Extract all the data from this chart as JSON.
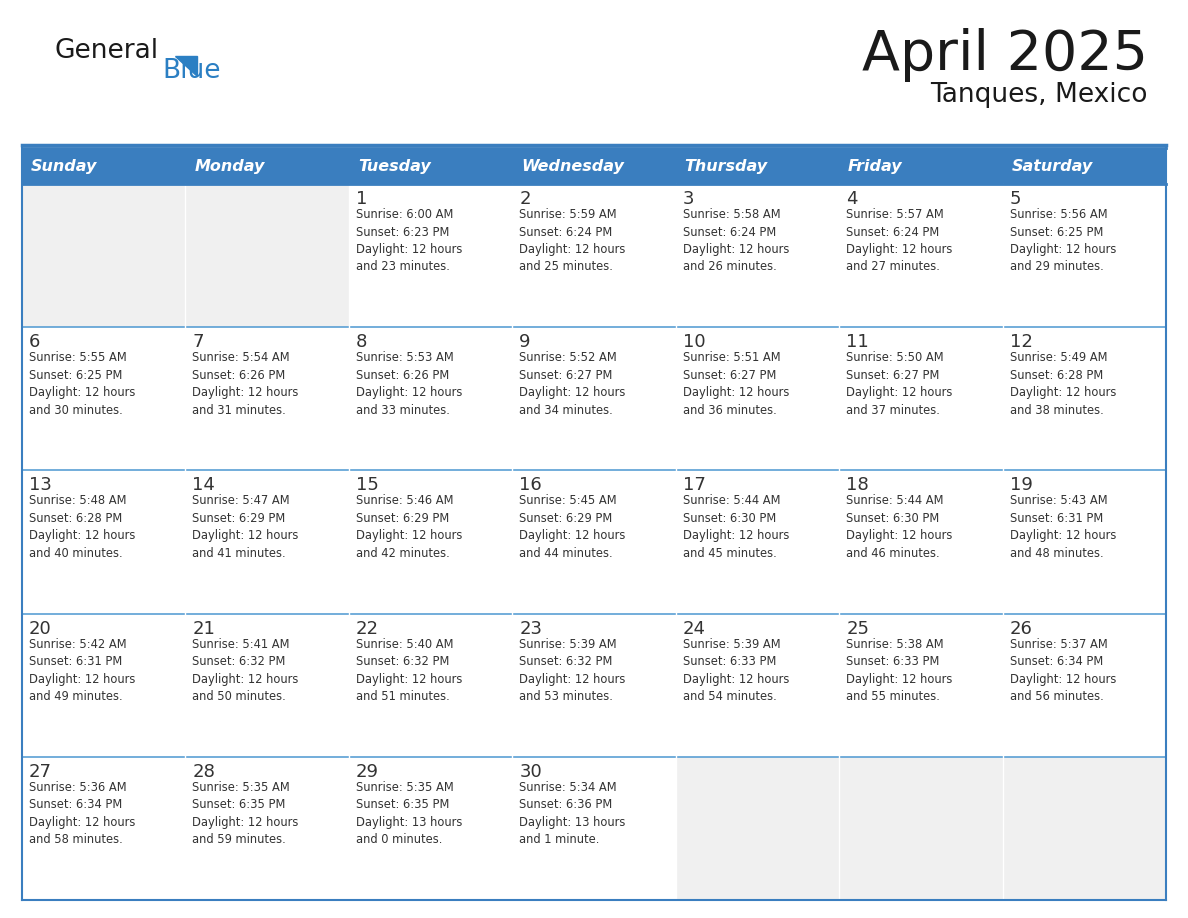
{
  "title": "April 2025",
  "subtitle": "Tanques, Mexico",
  "days_of_week": [
    "Sunday",
    "Monday",
    "Tuesday",
    "Wednesday",
    "Thursday",
    "Friday",
    "Saturday"
  ],
  "header_bg_color": "#3a7ebf",
  "header_text_color": "#ffffff",
  "cell_bg_white": "#ffffff",
  "cell_bg_gray": "#f0f0f0",
  "border_color": "#3a7ebf",
  "row_line_color": "#5a9fd4",
  "text_color": "#333333",
  "title_color": "#1a1a1a",
  "logo_general_color": "#1a1a1a",
  "logo_blue_color": "#2b7fc3",
  "calendar_data": [
    [
      {
        "day": null,
        "sunrise": null,
        "sunset": null,
        "daylight": null
      },
      {
        "day": null,
        "sunrise": null,
        "sunset": null,
        "daylight": null
      },
      {
        "day": 1,
        "sunrise": "6:00 AM",
        "sunset": "6:23 PM",
        "daylight": "12 hours\nand 23 minutes."
      },
      {
        "day": 2,
        "sunrise": "5:59 AM",
        "sunset": "6:24 PM",
        "daylight": "12 hours\nand 25 minutes."
      },
      {
        "day": 3,
        "sunrise": "5:58 AM",
        "sunset": "6:24 PM",
        "daylight": "12 hours\nand 26 minutes."
      },
      {
        "day": 4,
        "sunrise": "5:57 AM",
        "sunset": "6:24 PM",
        "daylight": "12 hours\nand 27 minutes."
      },
      {
        "day": 5,
        "sunrise": "5:56 AM",
        "sunset": "6:25 PM",
        "daylight": "12 hours\nand 29 minutes."
      }
    ],
    [
      {
        "day": 6,
        "sunrise": "5:55 AM",
        "sunset": "6:25 PM",
        "daylight": "12 hours\nand 30 minutes."
      },
      {
        "day": 7,
        "sunrise": "5:54 AM",
        "sunset": "6:26 PM",
        "daylight": "12 hours\nand 31 minutes."
      },
      {
        "day": 8,
        "sunrise": "5:53 AM",
        "sunset": "6:26 PM",
        "daylight": "12 hours\nand 33 minutes."
      },
      {
        "day": 9,
        "sunrise": "5:52 AM",
        "sunset": "6:27 PM",
        "daylight": "12 hours\nand 34 minutes."
      },
      {
        "day": 10,
        "sunrise": "5:51 AM",
        "sunset": "6:27 PM",
        "daylight": "12 hours\nand 36 minutes."
      },
      {
        "day": 11,
        "sunrise": "5:50 AM",
        "sunset": "6:27 PM",
        "daylight": "12 hours\nand 37 minutes."
      },
      {
        "day": 12,
        "sunrise": "5:49 AM",
        "sunset": "6:28 PM",
        "daylight": "12 hours\nand 38 minutes."
      }
    ],
    [
      {
        "day": 13,
        "sunrise": "5:48 AM",
        "sunset": "6:28 PM",
        "daylight": "12 hours\nand 40 minutes."
      },
      {
        "day": 14,
        "sunrise": "5:47 AM",
        "sunset": "6:29 PM",
        "daylight": "12 hours\nand 41 minutes."
      },
      {
        "day": 15,
        "sunrise": "5:46 AM",
        "sunset": "6:29 PM",
        "daylight": "12 hours\nand 42 minutes."
      },
      {
        "day": 16,
        "sunrise": "5:45 AM",
        "sunset": "6:29 PM",
        "daylight": "12 hours\nand 44 minutes."
      },
      {
        "day": 17,
        "sunrise": "5:44 AM",
        "sunset": "6:30 PM",
        "daylight": "12 hours\nand 45 minutes."
      },
      {
        "day": 18,
        "sunrise": "5:44 AM",
        "sunset": "6:30 PM",
        "daylight": "12 hours\nand 46 minutes."
      },
      {
        "day": 19,
        "sunrise": "5:43 AM",
        "sunset": "6:31 PM",
        "daylight": "12 hours\nand 48 minutes."
      }
    ],
    [
      {
        "day": 20,
        "sunrise": "5:42 AM",
        "sunset": "6:31 PM",
        "daylight": "12 hours\nand 49 minutes."
      },
      {
        "day": 21,
        "sunrise": "5:41 AM",
        "sunset": "6:32 PM",
        "daylight": "12 hours\nand 50 minutes."
      },
      {
        "day": 22,
        "sunrise": "5:40 AM",
        "sunset": "6:32 PM",
        "daylight": "12 hours\nand 51 minutes."
      },
      {
        "day": 23,
        "sunrise": "5:39 AM",
        "sunset": "6:32 PM",
        "daylight": "12 hours\nand 53 minutes."
      },
      {
        "day": 24,
        "sunrise": "5:39 AM",
        "sunset": "6:33 PM",
        "daylight": "12 hours\nand 54 minutes."
      },
      {
        "day": 25,
        "sunrise": "5:38 AM",
        "sunset": "6:33 PM",
        "daylight": "12 hours\nand 55 minutes."
      },
      {
        "day": 26,
        "sunrise": "5:37 AM",
        "sunset": "6:34 PM",
        "daylight": "12 hours\nand 56 minutes."
      }
    ],
    [
      {
        "day": 27,
        "sunrise": "5:36 AM",
        "sunset": "6:34 PM",
        "daylight": "12 hours\nand 58 minutes."
      },
      {
        "day": 28,
        "sunrise": "5:35 AM",
        "sunset": "6:35 PM",
        "daylight": "12 hours\nand 59 minutes."
      },
      {
        "day": 29,
        "sunrise": "5:35 AM",
        "sunset": "6:35 PM",
        "daylight": "13 hours\nand 0 minutes."
      },
      {
        "day": 30,
        "sunrise": "5:34 AM",
        "sunset": "6:36 PM",
        "daylight": "13 hours\nand 1 minute."
      },
      {
        "day": null,
        "sunrise": null,
        "sunset": null,
        "daylight": null
      },
      {
        "day": null,
        "sunrise": null,
        "sunset": null,
        "daylight": null
      },
      {
        "day": null,
        "sunrise": null,
        "sunset": null,
        "daylight": null
      }
    ]
  ],
  "figure_width": 11.88,
  "figure_height": 9.18
}
